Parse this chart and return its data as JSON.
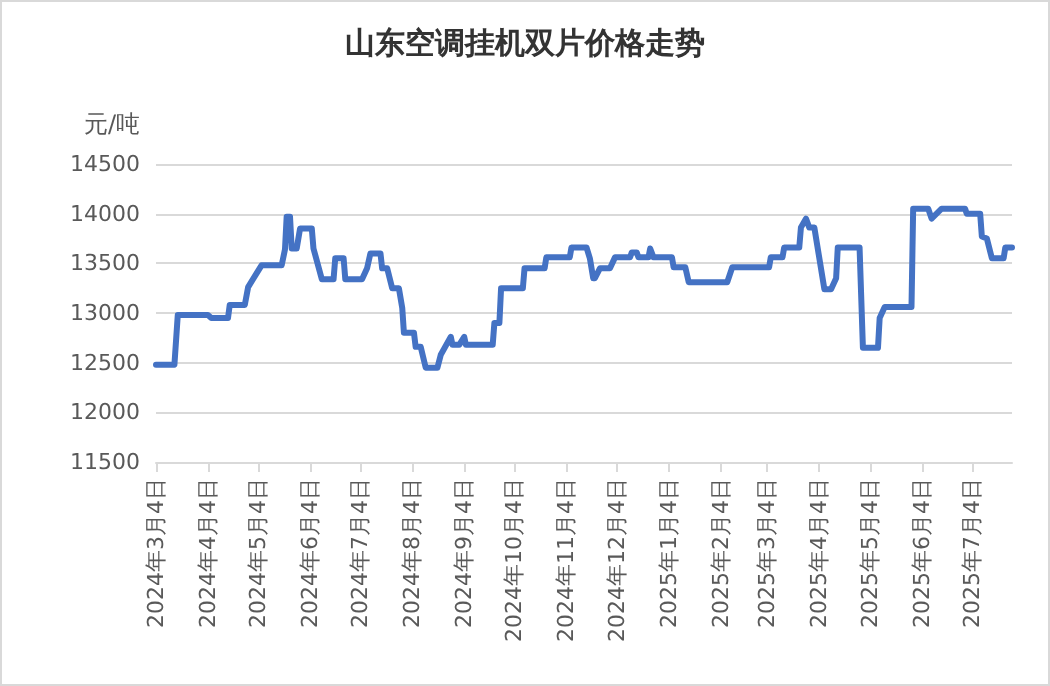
{
  "chart_data": {
    "type": "line",
    "title": "山东空调挂机双片价格走势",
    "ylabel": "元/吨",
    "x": [
      "2024-03-04",
      "2024-03-15",
      "2024-03-17",
      "2024-04-04",
      "2024-04-06",
      "2024-04-16",
      "2024-04-17",
      "2024-04-26",
      "2024-04-28",
      "2024-05-06",
      "2024-05-18",
      "2024-05-20",
      "2024-05-21",
      "2024-05-23",
      "2024-05-24",
      "2024-05-27",
      "2024-05-29",
      "2024-06-05",
      "2024-06-06",
      "2024-06-11",
      "2024-06-18",
      "2024-06-19",
      "2024-06-24",
      "2024-06-25",
      "2024-07-05",
      "2024-07-08",
      "2024-07-10",
      "2024-07-16",
      "2024-07-17",
      "2024-07-20",
      "2024-07-23",
      "2024-07-27",
      "2024-07-29",
      "2024-07-30",
      "2024-08-05",
      "2024-08-06",
      "2024-08-09",
      "2024-08-12",
      "2024-08-19",
      "2024-08-21",
      "2024-08-23",
      "2024-08-27",
      "2024-08-28",
      "2024-09-01",
      "2024-09-04",
      "2024-09-05",
      "2024-09-21",
      "2024-09-22",
      "2024-09-25",
      "2024-09-26",
      "2024-10-09",
      "2024-10-10",
      "2024-10-22",
      "2024-10-23",
      "2024-11-06",
      "2024-11-07",
      "2024-11-16",
      "2024-11-18",
      "2024-11-20",
      "2024-11-21",
      "2024-11-24",
      "2024-11-30",
      "2024-12-03",
      "2024-12-12",
      "2024-12-13",
      "2024-12-16",
      "2024-12-17",
      "2024-12-23",
      "2024-12-24",
      "2024-12-26",
      "2025-01-06",
      "2025-01-07",
      "2025-01-14",
      "2025-01-16",
      "2025-02-08",
      "2025-02-11",
      "2025-03-05",
      "2025-03-06",
      "2025-03-13",
      "2025-03-14",
      "2025-03-23",
      "2025-03-24",
      "2025-03-27",
      "2025-03-29",
      "2025-04-01",
      "2025-04-07",
      "2025-04-11",
      "2025-04-14",
      "2025-04-15",
      "2025-04-28",
      "2025-04-30",
      "2025-05-09",
      "2025-05-10",
      "2025-05-13",
      "2025-05-29",
      "2025-05-30",
      "2025-06-08",
      "2025-06-10",
      "2025-06-16",
      "2025-06-30",
      "2025-07-01",
      "2025-07-09",
      "2025-07-10",
      "2025-07-13",
      "2025-07-16",
      "2025-07-23",
      "2025-07-24",
      "2025-07-28"
    ],
    "series": [
      {
        "color": "#4472c4",
        "values": [
          12480,
          12480,
          12980,
          12980,
          12950,
          12950,
          13080,
          13080,
          13260,
          13480,
          13480,
          13640,
          13970,
          13970,
          13650,
          13650,
          13850,
          13850,
          13650,
          13340,
          13340,
          13550,
          13550,
          13340,
          13340,
          13450,
          13600,
          13600,
          13450,
          13450,
          13250,
          13250,
          13050,
          12800,
          12800,
          12660,
          12660,
          12450,
          12450,
          12580,
          12640,
          12760,
          12680,
          12680,
          12760,
          12680,
          12680,
          12900,
          12900,
          13250,
          13250,
          13450,
          13450,
          13560,
          13560,
          13660,
          13660,
          13550,
          13350,
          13350,
          13450,
          13450,
          13560,
          13560,
          13610,
          13610,
          13560,
          13560,
          13650,
          13560,
          13560,
          13460,
          13460,
          13310,
          13310,
          13460,
          13460,
          13560,
          13560,
          13660,
          13660,
          13860,
          13950,
          13860,
          13860,
          13240,
          13240,
          13350,
          13660,
          13660,
          12650,
          12650,
          12950,
          13060,
          13060,
          14050,
          14050,
          13950,
          14050,
          14050,
          14000,
          14000,
          13770,
          13750,
          13550,
          13550,
          13660,
          13660
        ]
      }
    ],
    "xlim": [
      "2024-03-04",
      "2025-07-28"
    ],
    "xticks": [
      {
        "value": "2024-03-04",
        "label": "2024年3月4日"
      },
      {
        "value": "2024-04-04",
        "label": "2024年4月4日"
      },
      {
        "value": "2024-05-04",
        "label": "2024年5月4日"
      },
      {
        "value": "2024-06-04",
        "label": "2024年6月4日"
      },
      {
        "value": "2024-07-04",
        "label": "2024年7月4日"
      },
      {
        "value": "2024-08-04",
        "label": "2024年8月4日"
      },
      {
        "value": "2024-09-04",
        "label": "2024年9月4日"
      },
      {
        "value": "2024-10-04",
        "label": "2024年10月4日"
      },
      {
        "value": "2024-11-04",
        "label": "2024年11月4日"
      },
      {
        "value": "2024-12-04",
        "label": "2024年12月4日"
      },
      {
        "value": "2025-01-04",
        "label": "2025年1月4日"
      },
      {
        "value": "2025-02-04",
        "label": "2025年2月4日"
      },
      {
        "value": "2025-03-04",
        "label": "2025年3月4日"
      },
      {
        "value": "2025-04-04",
        "label": "2025年4月4日"
      },
      {
        "value": "2025-05-04",
        "label": "2025年5月4日"
      },
      {
        "value": "2025-06-04",
        "label": "2025年6月4日"
      },
      {
        "value": "2025-07-04",
        "label": "2025年7月4日"
      }
    ],
    "ylim": [
      11500,
      14500
    ],
    "yticks": [
      11500,
      12000,
      12500,
      13000,
      13500,
      14000,
      14500
    ],
    "grid": "y",
    "marker": "none",
    "line_style": "solid"
  }
}
